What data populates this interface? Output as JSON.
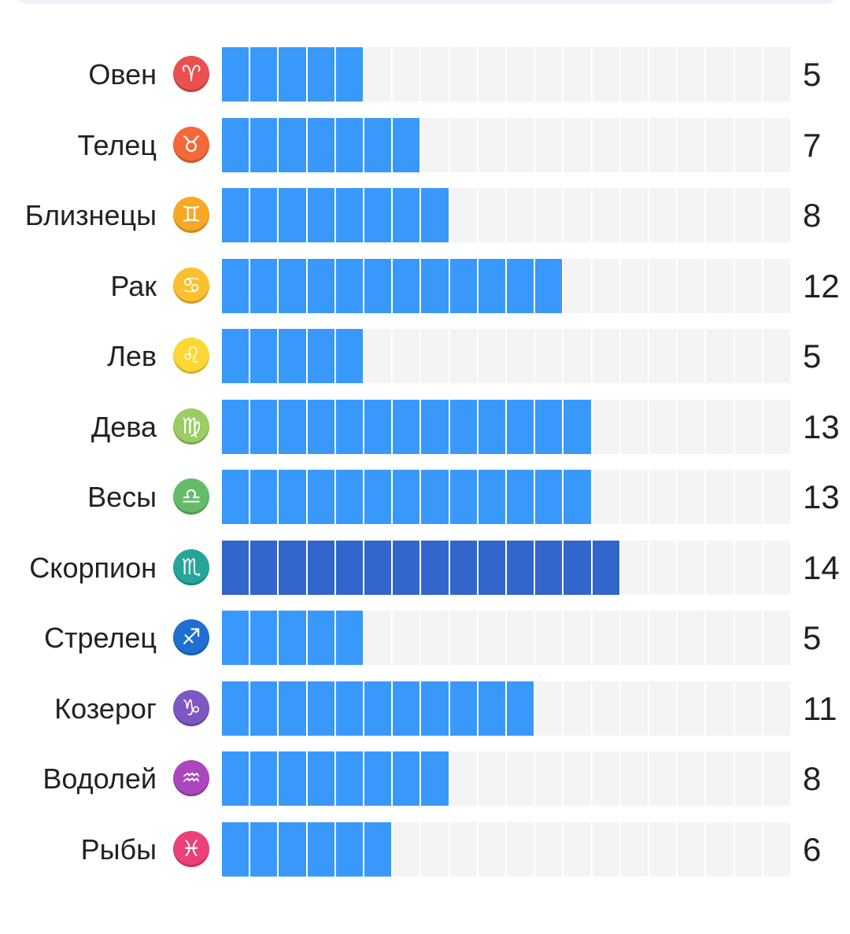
{
  "chart_data": {
    "type": "bar",
    "orientation": "horizontal",
    "max_segments": 20,
    "bar_color": "#3899fb",
    "highlight_color": "#3266cc",
    "track_color": "#f4f4f4",
    "categories": [
      "Овен",
      "Телец",
      "Близнецы",
      "Рак",
      "Лев",
      "Дева",
      "Весы",
      "Скорпион",
      "Стрелец",
      "Козерог",
      "Водолей",
      "Рыбы"
    ],
    "values": [
      5,
      7,
      8,
      12,
      5,
      13,
      13,
      14,
      5,
      11,
      8,
      6
    ],
    "highlighted": "Скорпион",
    "icons": [
      {
        "name": "aries-icon",
        "glyph": "♈︎",
        "color": "#e9504f"
      },
      {
        "name": "taurus-icon",
        "glyph": "♉︎",
        "color": "#f4683a"
      },
      {
        "name": "gemini-icon",
        "glyph": "♊︎",
        "color": "#f9a825"
      },
      {
        "name": "cancer-icon",
        "glyph": "♋︎",
        "color": "#fbc02d"
      },
      {
        "name": "leo-icon",
        "glyph": "♌︎",
        "color": "#fdd835"
      },
      {
        "name": "virgo-icon",
        "glyph": "♍︎",
        "color": "#9ccc65"
      },
      {
        "name": "libra-icon",
        "glyph": "♎︎",
        "color": "#66bb6a"
      },
      {
        "name": "scorpio-icon",
        "glyph": "♏︎",
        "color": "#26a69a"
      },
      {
        "name": "sagittarius-icon",
        "glyph": "♐︎",
        "color": "#1e6fd0"
      },
      {
        "name": "capricorn-icon",
        "glyph": "♑︎",
        "color": "#7e57c2"
      },
      {
        "name": "aquarius-icon",
        "glyph": "♒︎",
        "color": "#ab47bc"
      },
      {
        "name": "pisces-icon",
        "glyph": "♓︎",
        "color": "#ec407a"
      }
    ]
  }
}
